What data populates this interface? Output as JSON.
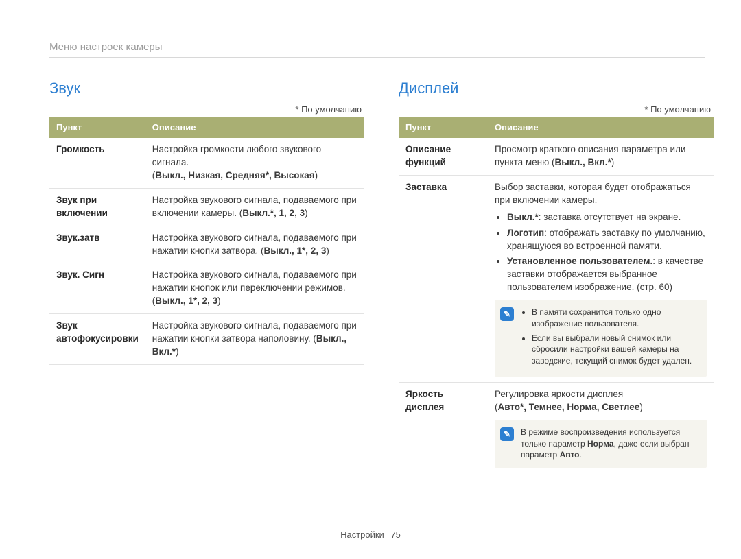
{
  "breadcrumb": "Меню настроек камеры",
  "defaultNote": "* По умолчанию",
  "tableHeaders": {
    "item": "Пункт",
    "desc": "Описание"
  },
  "sound": {
    "title": "Звук",
    "rows": {
      "volume": {
        "label": "Громкость",
        "text": "Настройка громкости любого звукового сигнала.",
        "options": "Выкл., Низкая, Средняя*, Высокая"
      },
      "startup": {
        "label": "Звук при включении",
        "text": "Настройка звукового сигнала, подаваемого при включении камеры. (",
        "options": "Выкл.*, 1, 2, 3",
        "tail": ")"
      },
      "shutter": {
        "label": "Звук.затв",
        "text": "Настройка звукового сигнала, подаваемого при нажатии кнопки затвора. (",
        "options": "Выкл., 1*, 2, 3",
        "tail": ")"
      },
      "beep": {
        "label": "Звук. Сигн",
        "text": "Настройка звукового сигнала, подаваемого при нажатии кнопок или переключении режимов. (",
        "options": "Выкл., 1*, 2, 3",
        "tail": ")"
      },
      "af": {
        "label": "Звук автофокусировки",
        "text": "Настройка звукового сигнала, подаваемого при нажатии кнопки затвора наполовину. (",
        "options": "Выкл., Вкл.*",
        "tail": ")"
      }
    }
  },
  "display": {
    "title": "Дисплей",
    "rows": {
      "funcDesc": {
        "label": "Описание функций",
        "text": "Просмотр краткого описания параметра или пункта меню (",
        "options": "Выкл., Вкл.*",
        "tail": ")"
      },
      "startImg": {
        "label": "Заставка",
        "intro": "Выбор заставки, которая будет отображаться при включении камеры.",
        "b1a": "Выкл.*",
        "b1b": ": заставка отсутствует на экране.",
        "b2a": "Логотип",
        "b2b": ": отображать заставку по умолчанию, хранящуюся во встроенной памяти.",
        "b3a": "Установленное пользователем.",
        "b3b": ": в качестве заставки отображается выбранное пользователем изображение. (стр. 60)",
        "note1": "В памяти сохранится только одно изображение пользователя.",
        "note2": "Если вы выбрали новый снимок или сбросили настройки вашей камеры на заводские, текущий снимок будет удален."
      },
      "brightness": {
        "label": "Яркость дисплея",
        "text": "Регулировка яркости дисплея",
        "options": "Авто*, Темнее, Норма, Светлее",
        "noteA": "В режиме воспроизведения используется только параметр ",
        "noteB": "Норма",
        "noteC": ", даже если выбран параметр ",
        "noteD": "Авто",
        "noteE": "."
      }
    }
  },
  "footer": {
    "section": "Настройки",
    "page": "75"
  },
  "noteIcon": "✎"
}
